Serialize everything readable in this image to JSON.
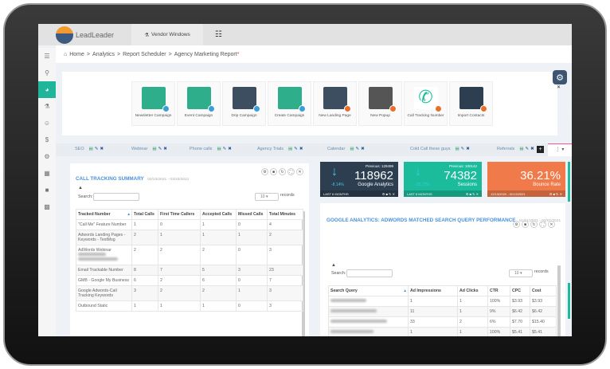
{
  "app": {
    "brand": "LeadLeader",
    "vendor_tab": "Vendor Windows"
  },
  "breadcrumb": [
    "Home",
    "Analytics",
    "Report Scheduler",
    "Agency Marketing Report"
  ],
  "breadcrumb_required_mark": "*",
  "sidebar": [
    "menu",
    "search",
    "dashboard",
    "org-chart",
    "users",
    "dollar",
    "settings",
    "grid",
    "lock",
    "trash"
  ],
  "quick_actions": [
    {
      "label": "Newsletter Campaign",
      "color": "#2fae8b",
      "badge": "#3b9ed8"
    },
    {
      "label": "Event Campaign",
      "color": "#2fae8b",
      "badge": "#3b9ed8"
    },
    {
      "label": "Drip Campaign",
      "color": "#3c4e60",
      "badge": "#3b9ed8"
    },
    {
      "label": "Create Campaign",
      "color": "#2fae8b",
      "badge": "#3b9ed8"
    },
    {
      "label": "New Landing Page",
      "color": "#3c4e60",
      "badge": "#e8702a"
    },
    {
      "label": "New Popup",
      "color": "#555",
      "badge": "#e8702a"
    },
    {
      "label": "Call Tracking Number",
      "color": "#fff",
      "badge": "#e8702a"
    },
    {
      "label": "Import Contacts",
      "color": "#2c3e50",
      "badge": "#e8702a"
    }
  ],
  "report_tabs": [
    "SEO",
    "Webinar",
    "Phone calls",
    "Agency Trials",
    "Calendar",
    "Cold Call these guys",
    "Referrals"
  ],
  "call_tracking": {
    "title": "CALL TRACKING SUMMARY",
    "date": "02/23/2021 - 03/23/2021",
    "search_label": "Search:",
    "page_size": "10",
    "records_label": "records",
    "columns": [
      "Tracked Number",
      "Total Calls",
      "First Time Callers",
      "Accepted Calls",
      "Missed Calls",
      "Total Minutes"
    ],
    "rows": [
      [
        "\"Call Me\" Feature Number",
        "1",
        "0",
        "1",
        "0",
        "4"
      ],
      [
        "Adwords Landing Pages - Keywords - TextMsg",
        "2",
        "1",
        "1",
        "1",
        "2"
      ],
      [
        "AdWords Webinar",
        "2",
        "2",
        "2",
        "0",
        "3"
      ],
      [
        "Email Trackable Number",
        "8",
        "7",
        "5",
        "3",
        "23"
      ],
      [
        "GMB - Google My Business",
        "6",
        "2",
        "6",
        "0",
        "7"
      ],
      [
        "Google Adwords-Call Tracking Keywords",
        "3",
        "2",
        "2",
        "1",
        "3"
      ],
      [
        "Outbound Static",
        "1",
        "1",
        "1",
        "0",
        "3"
      ]
    ]
  },
  "stats": [
    {
      "previous": "Previous: 129499",
      "value": "118962",
      "label": "Google Analytics",
      "change": "-8.14%",
      "period": "LAST 6 MONTHS",
      "color": "#2c3e50"
    },
    {
      "previous": "Previous: 100142",
      "value": "74382",
      "label": "Sessions",
      "change": "-25.72%",
      "period": "LAST 6 MONTHS",
      "color": "#1abc9c"
    },
    {
      "previous": "",
      "value": "36.21%",
      "label": "Bounce Rate",
      "change": "",
      "period": "12/13/2020 - 01/13/2021",
      "color": "#f07a4a"
    }
  ],
  "adwords": {
    "title": "GOOGLE ANALYTICS: ADWORDS MATCHED SEARCH QUERY PERFORMANCE",
    "date": "01/01/2021 - 02/01/2021",
    "search_label": "Search:",
    "page_size": "10",
    "records_label": "records",
    "columns": [
      "Search Query",
      "Ad Impressions",
      "Ad Clicks",
      "CTR",
      "CPC",
      "Cost"
    ],
    "rows": [
      [
        "",
        "1",
        "1",
        "100%",
        "$3.93",
        "$3.93"
      ],
      [
        "",
        "11",
        "1",
        "9%",
        "$6.42",
        "$6.42"
      ],
      [
        "",
        "33",
        "2",
        "6%",
        "$7.70",
        "$15.40"
      ],
      [
        "",
        "1",
        "1",
        "100%",
        "$5.41",
        "$5.41"
      ],
      [
        "",
        "37",
        "2",
        "5%",
        "$7.90",
        "$15.81"
      ]
    ]
  }
}
